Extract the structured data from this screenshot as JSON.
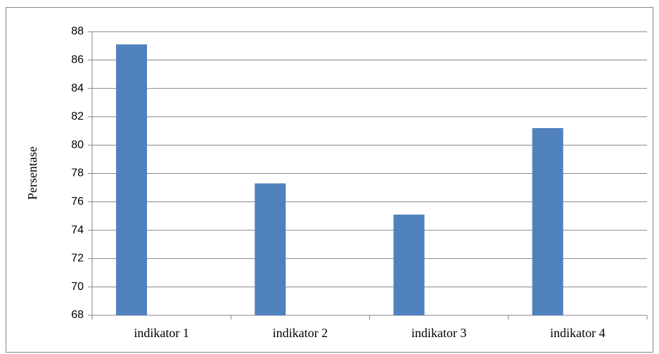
{
  "chart_data": {
    "type": "bar",
    "y_label": "Persentase",
    "categories": [
      "indikator 1",
      "indikator 2",
      "indikator 3",
      "indikator 4"
    ],
    "values": [
      87.1,
      77.3,
      75.1,
      81.2
    ],
    "color": "#4f81bd",
    "ylim": [
      68,
      88
    ],
    "yticks": [
      68,
      70,
      72,
      74,
      76,
      78,
      80,
      82,
      84,
      86,
      88
    ],
    "grid": true
  }
}
